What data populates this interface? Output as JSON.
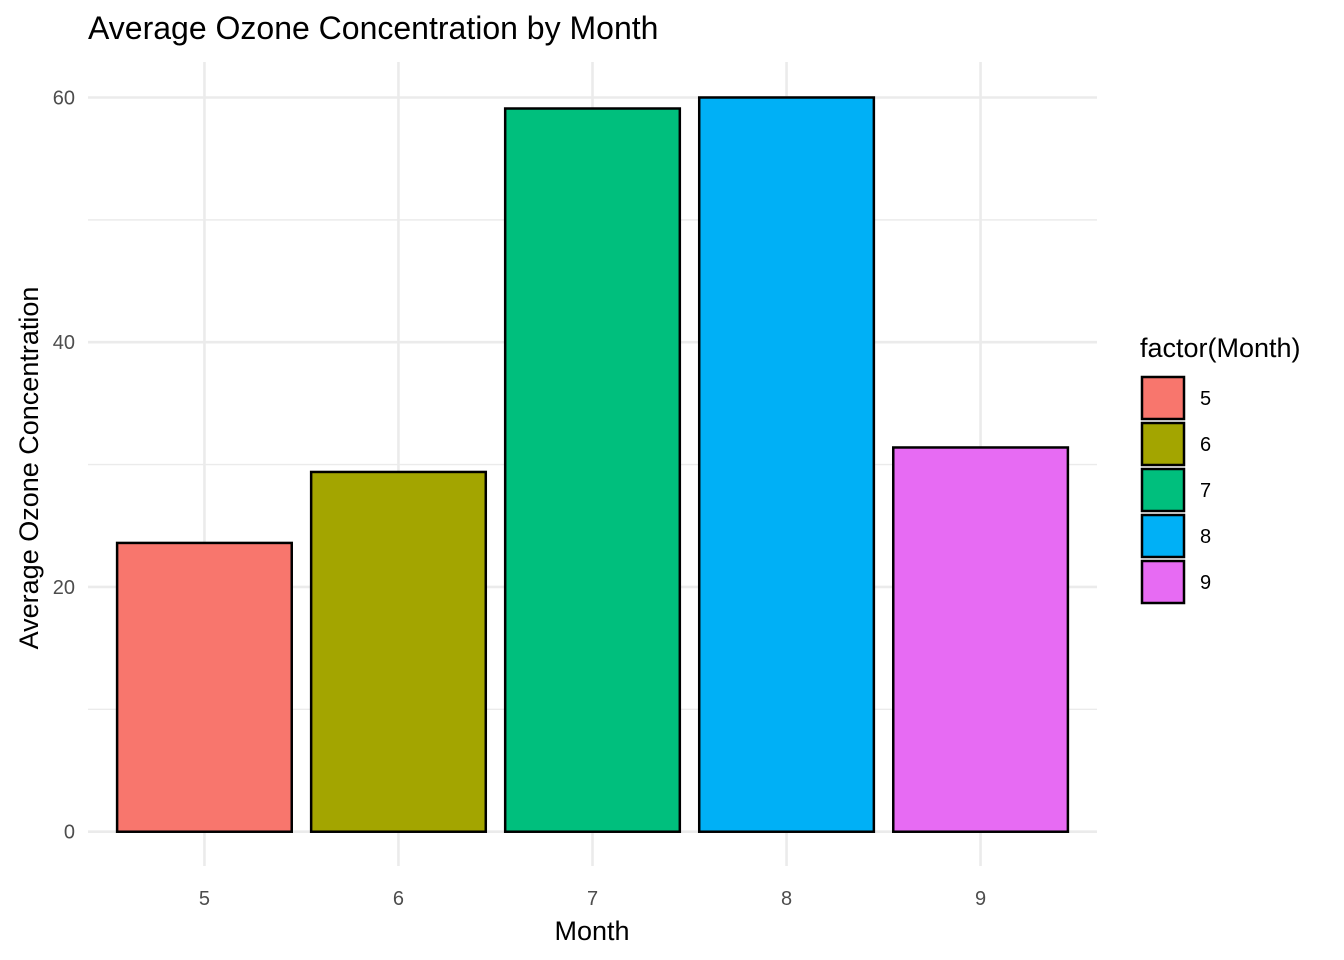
{
  "chart_data": {
    "type": "bar",
    "title": "Average Ozone Concentration by Month",
    "xlabel": "Month",
    "ylabel": "Average Ozone Concentration",
    "categories": [
      "5",
      "6",
      "7",
      "8",
      "9"
    ],
    "values": [
      23.6,
      29.4,
      59.1,
      60.0,
      31.4
    ],
    "colors": [
      "#F8766D",
      "#A3A500",
      "#00BF7D",
      "#00B0F6",
      "#E76BF3"
    ],
    "bar_outline": "#000000",
    "ylim": [
      -2.8,
      62.9
    ],
    "yticks": [
      0,
      20,
      40,
      60
    ],
    "grid": true,
    "legend": {
      "title": "factor(Month)",
      "position": "right",
      "entries": [
        "5",
        "6",
        "7",
        "8",
        "9"
      ]
    }
  }
}
